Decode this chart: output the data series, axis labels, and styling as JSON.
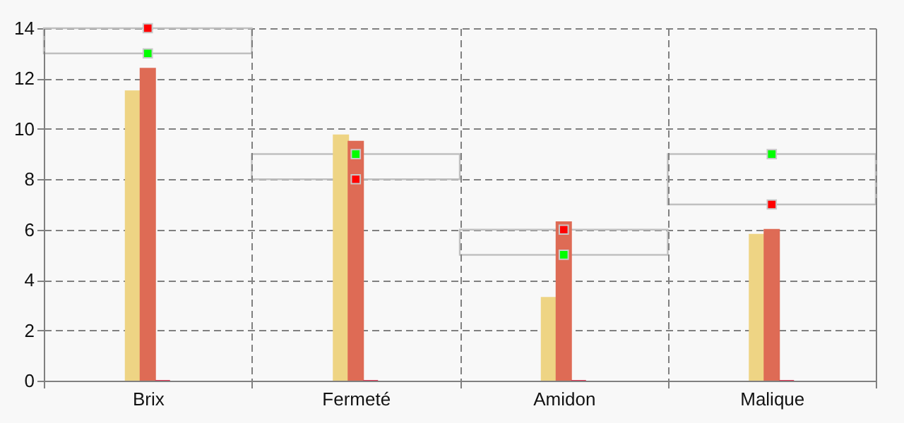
{
  "chart_data": {
    "type": "bar",
    "categories": [
      "Brix",
      "Fermeté",
      "Amidon",
      "Malique"
    ],
    "ylim": [
      0,
      14
    ],
    "yticks": [
      0,
      2,
      4,
      6,
      8,
      10,
      12,
      14
    ],
    "grid": true,
    "marker": "square",
    "series": [
      {
        "color": "#eed484",
        "values": [
          11.5,
          9.75,
          3.3,
          5.8
        ]
      },
      {
        "color": "#de6b55",
        "values": [
          12.4,
          9.5,
          6.3,
          6.0
        ]
      },
      {
        "color": "#e03050",
        "values": [
          0,
          0,
          0,
          0
        ]
      },
      {
        "type": "bar",
        "color": "#c0c0c0",
        "base": [
          13,
          8,
          5,
          7
        ],
        "values": [
          1,
          1,
          1,
          2
        ]
      },
      {
        "type": "scatter",
        "color": "#00ff00",
        "values": [
          13,
          9,
          5,
          9
        ]
      },
      {
        "type": "scatter",
        "color": "#ff0000",
        "values": [
          14,
          8,
          6,
          7
        ]
      }
    ]
  }
}
